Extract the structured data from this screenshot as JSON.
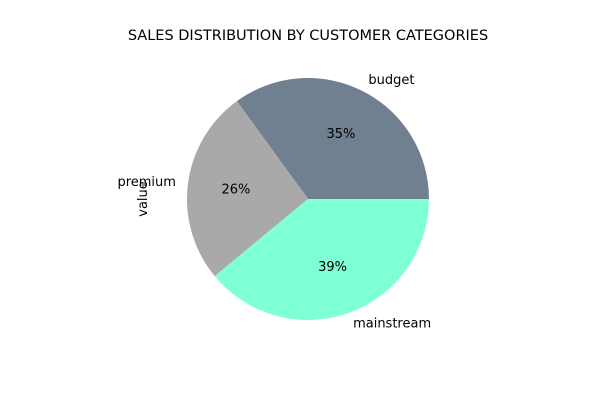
{
  "chart_data": {
    "type": "pie",
    "title": "SALES DISTRIBUTION BY CUSTOMER CATEGORIES",
    "ylabel": "value",
    "start_angle_deg": 0,
    "direction": "counterclockwise",
    "legend": "none",
    "slices": [
      {
        "label": "budget",
        "value": 35,
        "pct_label": "35%",
        "color": "#708090"
      },
      {
        "label": "premium",
        "value": 26,
        "pct_label": "26%",
        "color": "#a9a9a9"
      },
      {
        "label": "mainstream",
        "value": 39,
        "pct_label": "39%",
        "color": "#7fffd4"
      }
    ]
  }
}
